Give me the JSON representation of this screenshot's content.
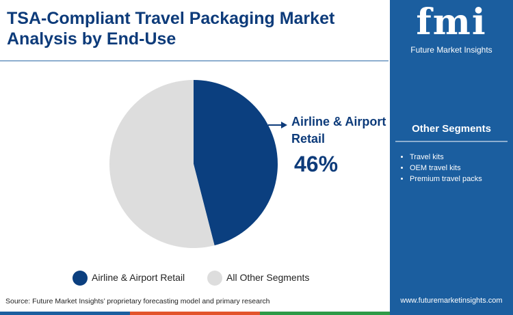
{
  "chart_data": {
    "type": "pie",
    "title": "TSA-Compliant Travel Packaging Market Analysis by End-Use",
    "categories": [
      "Airline & Airport Retail",
      "All Other Segments"
    ],
    "values": [
      46,
      54
    ],
    "value_labels": [
      "46%",
      null
    ],
    "colors": [
      "#0b3f7f",
      "#dddddd"
    ]
  },
  "source": "Source: Future Market Insights’ proprietary forecasting model and primary research",
  "logo": {
    "mark": "fmi",
    "name": "Future Market Insights"
  },
  "side_panel": {
    "title": "Other Segments",
    "items": [
      "Travel kits",
      "OEM travel kits",
      "Premium travel packs"
    ]
  },
  "website": "www.futuremarketinsights.com"
}
